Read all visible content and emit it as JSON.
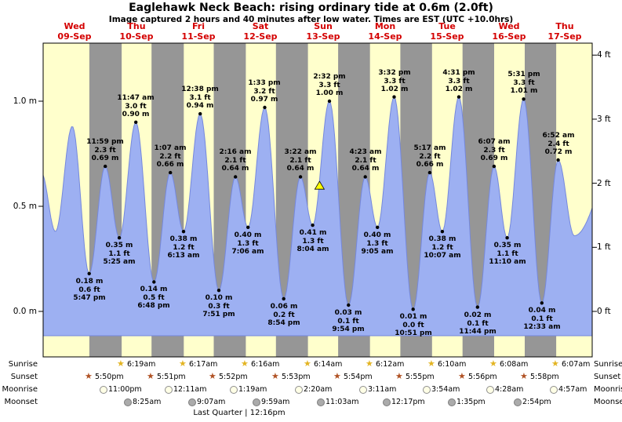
{
  "title": "Eaglehawk Neck Beach: rising  ordinary tide at 0.6m (2.0ft)",
  "subtitle": "Image captured 2 hours and 40 minutes after low water. Times are EST (UTC +10.0hrs)",
  "colors": {
    "day_bg": "#ffffcc",
    "night_bg": "#969696",
    "tide_fill": "#9db0f2",
    "tide_edge": "#7588dd",
    "day_label": "#d40000",
    "marker_fill": "#ffff00",
    "sunrise_star": "#e3b422",
    "sunset_star": "#b05224"
  },
  "chart_data": {
    "type": "area",
    "x_days": [
      {
        "label": "Wed",
        "date": "09-Sep"
      },
      {
        "label": "Thu",
        "date": "10-Sep"
      },
      {
        "label": "Fri",
        "date": "11-Sep"
      },
      {
        "label": "Sat",
        "date": "12-Sep"
      },
      {
        "label": "Sun",
        "date": "13-Sep"
      },
      {
        "label": "Mon",
        "date": "14-Sep"
      },
      {
        "label": "Tue",
        "date": "15-Sep"
      },
      {
        "label": "Wed",
        "date": "16-Sep"
      },
      {
        "label": "Thu",
        "date": "17-Sep"
      }
    ],
    "y_left_ticks": [
      {
        "label": "0.0 m",
        "m": 0
      },
      {
        "label": "0.5 m",
        "m": 0.5
      },
      {
        "label": "1.0 m",
        "m": 1.0
      }
    ],
    "y_right_ticks": [
      {
        "label": "0 ft",
        "ft": 0
      },
      {
        "label": "1 ft",
        "ft": 1
      },
      {
        "label": "2 ft",
        "ft": 2
      },
      {
        "label": "3 ft",
        "ft": 3
      },
      {
        "label": "4 ft",
        "ft": 4
      }
    ],
    "tides": [
      {
        "day": 9,
        "time": "5:47 pm",
        "type": "low",
        "m": "0.18",
        "ft": "0.6"
      },
      {
        "day": 9,
        "time": "11:59 pm",
        "type": "high",
        "m": "0.69",
        "ft": "2.3"
      },
      {
        "day": 10,
        "time": "5:25 am",
        "type": "low",
        "m": "0.35",
        "ft": "1.1"
      },
      {
        "day": 10,
        "time": "11:47 am",
        "type": "high",
        "m": "0.90",
        "ft": "3.0"
      },
      {
        "day": 10,
        "time": "6:48 pm",
        "type": "low",
        "m": "0.14",
        "ft": "0.5"
      },
      {
        "day": 11,
        "time": "1:07 am",
        "type": "high",
        "m": "0.66",
        "ft": "2.2"
      },
      {
        "day": 11,
        "time": "6:13 am",
        "type": "low",
        "m": "0.38",
        "ft": "1.2"
      },
      {
        "day": 11,
        "time": "12:38 pm",
        "type": "high",
        "m": "0.94",
        "ft": "3.1"
      },
      {
        "day": 11,
        "time": "7:51 pm",
        "type": "low",
        "m": "0.10",
        "ft": "0.3"
      },
      {
        "day": 12,
        "time": "2:16 am",
        "type": "high",
        "m": "0.64",
        "ft": "2.1"
      },
      {
        "day": 12,
        "time": "7:06 am",
        "type": "low",
        "m": "0.40",
        "ft": "1.3"
      },
      {
        "day": 12,
        "time": "1:33 pm",
        "type": "high",
        "m": "0.97",
        "ft": "3.2"
      },
      {
        "day": 12,
        "time": "8:54 pm",
        "type": "low",
        "m": "0.06",
        "ft": "0.2"
      },
      {
        "day": 13,
        "time": "3:22 am",
        "type": "high",
        "m": "0.64",
        "ft": "2.1"
      },
      {
        "day": 13,
        "time": "8:04 am",
        "type": "low",
        "m": "0.41",
        "ft": "1.3"
      },
      {
        "day": 13,
        "time": "2:32 pm",
        "type": "high",
        "m": "1.00",
        "ft": "3.3"
      },
      {
        "day": 13,
        "time": "9:54 pm",
        "type": "low",
        "m": "0.03",
        "ft": "0.1"
      },
      {
        "day": 14,
        "time": "4:23 am",
        "type": "high",
        "m": "0.64",
        "ft": "2.1"
      },
      {
        "day": 14,
        "time": "9:05 am",
        "type": "low",
        "m": "0.40",
        "ft": "1.3"
      },
      {
        "day": 14,
        "time": "3:32 pm",
        "type": "high",
        "m": "1.02",
        "ft": "3.3"
      },
      {
        "day": 14,
        "time": "10:51 pm",
        "type": "low",
        "m": "0.01",
        "ft": "0.0"
      },
      {
        "day": 15,
        "time": "5:17 am",
        "type": "high",
        "m": "0.66",
        "ft": "2.2"
      },
      {
        "day": 15,
        "time": "10:07 am",
        "type": "low",
        "m": "0.38",
        "ft": "1.2"
      },
      {
        "day": 15,
        "time": "4:31 pm",
        "type": "high",
        "m": "1.02",
        "ft": "3.3"
      },
      {
        "day": 15,
        "time": "11:44 pm",
        "type": "low",
        "m": "0.02",
        "ft": "0.1"
      },
      {
        "day": 16,
        "time": "6:07 am",
        "type": "high",
        "m": "0.69",
        "ft": "2.3"
      },
      {
        "day": 16,
        "time": "11:10 am",
        "type": "low",
        "m": "0.35",
        "ft": "1.1"
      },
      {
        "day": 16,
        "time": "5:31 pm",
        "type": "high",
        "m": "1.01",
        "ft": "3.3"
      },
      {
        "day": 17,
        "time": "12:33 am",
        "type": "low",
        "m": "0.04",
        "ft": "0.1"
      },
      {
        "day": 17,
        "time": "6:52 am",
        "type": "high",
        "m": "0.72",
        "ft": "2.4"
      }
    ],
    "marker": {
      "height_m": 0.6,
      "height_ft": 2.0,
      "offset_after_low": "2:40"
    }
  },
  "astro": {
    "rows": [
      {
        "label": "Sunrise",
        "icon": "star-sunrise",
        "events": [
          {
            "day": 10,
            "time": "6:19am"
          },
          {
            "day": 11,
            "time": "6:17am"
          },
          {
            "day": 12,
            "time": "6:16am"
          },
          {
            "day": 13,
            "time": "6:14am"
          },
          {
            "day": 14,
            "time": "6:12am"
          },
          {
            "day": 15,
            "time": "6:10am"
          },
          {
            "day": 16,
            "time": "6:08am"
          },
          {
            "day": 17,
            "time": "6:07am"
          }
        ]
      },
      {
        "label": "Sunset",
        "icon": "star-sunset",
        "events": [
          {
            "day": 9,
            "time": "5:50pm"
          },
          {
            "day": 10,
            "time": "5:51pm"
          },
          {
            "day": 11,
            "time": "5:52pm"
          },
          {
            "day": 12,
            "time": "5:53pm"
          },
          {
            "day": 13,
            "time": "5:54pm"
          },
          {
            "day": 14,
            "time": "5:55pm"
          },
          {
            "day": 15,
            "time": "5:56pm"
          },
          {
            "day": 16,
            "time": "5:58pm"
          }
        ]
      },
      {
        "label": "Moonrise",
        "icon": "moon-open",
        "events": [
          {
            "day": 9,
            "time": "11:00pm"
          },
          {
            "day": 11,
            "time": "12:11am"
          },
          {
            "day": 12,
            "time": "1:19am"
          },
          {
            "day": 13,
            "time": "2:20am"
          },
          {
            "day": 14,
            "time": "3:11am"
          },
          {
            "day": 15,
            "time": "3:54am"
          },
          {
            "day": 16,
            "time": "4:28am"
          },
          {
            "day": 17,
            "time": "4:57am"
          }
        ]
      },
      {
        "label": "Moonset",
        "icon": "moon-filled",
        "events": [
          {
            "day": 10,
            "time": "8:25am"
          },
          {
            "day": 11,
            "time": "9:07am"
          },
          {
            "day": 12,
            "time": "9:59am"
          },
          {
            "day": 13,
            "time": "11:03am"
          },
          {
            "day": 14,
            "time": "12:17pm"
          },
          {
            "day": 15,
            "time": "1:35pm"
          },
          {
            "day": 16,
            "time": "2:54pm"
          }
        ]
      }
    ],
    "moon_phase": "Last Quarter | 12:16pm"
  }
}
